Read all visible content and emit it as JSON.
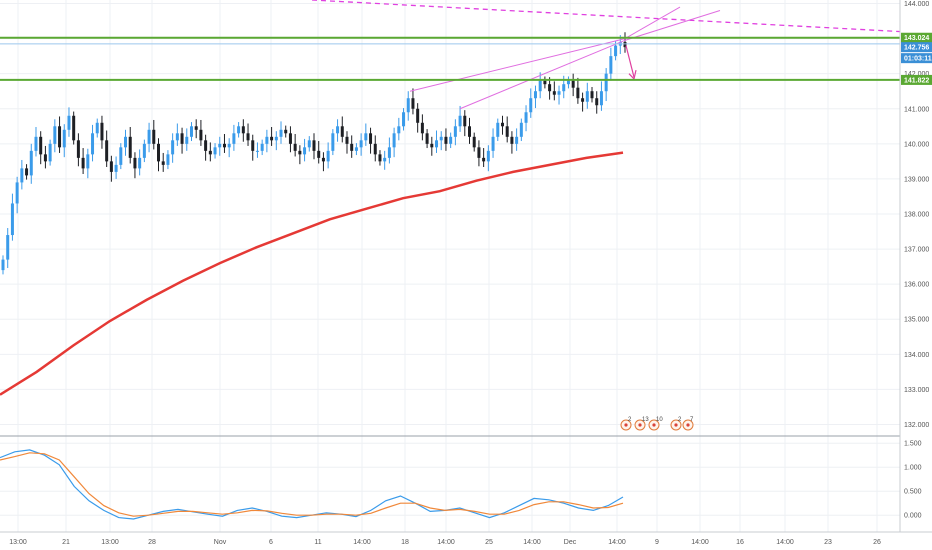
{
  "chart_data": {
    "type": "candlestick",
    "main": {
      "ylim": [
        131.7,
        144.1
      ],
      "y_ticks": [
        132.0,
        133.0,
        134.0,
        135.0,
        136.0,
        137.0,
        138.0,
        139.0,
        140.0,
        141.0,
        142.0,
        143.0,
        144.0
      ],
      "y_tick_labels": [
        "132.000",
        "133.000",
        "134.000",
        "135.000",
        "136.000",
        "137.000",
        "138.000",
        "139.000",
        "140.000",
        "141.000",
        "142.000",
        "143.000",
        "144.000"
      ],
      "levels": [
        {
          "value": 143.024,
          "label": "143.024",
          "color": "#5aa832"
        },
        {
          "value": 141.822,
          "label": "141.822",
          "color": "#5aa832"
        }
      ],
      "price_label": {
        "value": 142.756,
        "label": "142.756",
        "color": "#3a8fd6"
      },
      "countdown_label": "01:03:11",
      "price_line": {
        "value": 142.85,
        "color": "#9cc8ee"
      },
      "closes": [
        136.7,
        137.4,
        138.3,
        138.9,
        139.3,
        139.1,
        139.8,
        140.2,
        139.7,
        139.5,
        140.0,
        140.5,
        139.9,
        140.4,
        140.8,
        140.1,
        139.6,
        139.3,
        139.7,
        140.3,
        140.6,
        140.1,
        139.5,
        139.2,
        139.4,
        139.9,
        140.2,
        139.6,
        139.3,
        139.6,
        140.0,
        140.4,
        140.0,
        139.5,
        139.4,
        139.7,
        140.1,
        140.3,
        140.0,
        140.2,
        140.5,
        140.4,
        140.1,
        139.8,
        139.7,
        139.9,
        140.0,
        139.9,
        140.0,
        140.3,
        140.5,
        140.3,
        140.1,
        139.8,
        139.8,
        140.0,
        140.2,
        140.1,
        140.2,
        140.4,
        140.3,
        140.0,
        139.8,
        139.7,
        139.9,
        140.1,
        139.8,
        139.6,
        139.5,
        139.8,
        140.3,
        140.5,
        140.2,
        140.0,
        139.8,
        139.9,
        140.1,
        140.3,
        140.0,
        139.7,
        139.5,
        139.6,
        139.9,
        140.3,
        140.5,
        140.9,
        141.3,
        141.0,
        140.6,
        140.3,
        140.0,
        139.9,
        140.1,
        140.2,
        140.0,
        140.2,
        140.5,
        140.8,
        140.5,
        140.2,
        139.9,
        139.6,
        139.5,
        139.8,
        140.2,
        140.6,
        140.5,
        140.2,
        140.0,
        140.2,
        140.6,
        140.9,
        141.3,
        141.5,
        141.8,
        141.7,
        141.5,
        141.4,
        141.5,
        141.7,
        141.8,
        141.6,
        141.3,
        141.2,
        141.5,
        141.3,
        141.1,
        141.5,
        142.0,
        142.5,
        142.8,
        142.9,
        142.756
      ],
      "moving_average": {
        "color": "#e53935",
        "values": [
          132.85,
          133.5,
          134.25,
          134.95,
          135.55,
          136.1,
          136.6,
          137.05,
          137.45,
          137.85,
          138.15,
          138.45,
          138.65,
          138.95,
          139.2,
          139.4,
          139.6,
          139.75
        ]
      },
      "annotations": {
        "trendline_color": "#e06ee0",
        "dashed_line_color": "#e040e0",
        "arrow_color": "#e040a0"
      }
    },
    "oscillator": {
      "ylim": [
        -0.35,
        1.65
      ],
      "y_ticks": [
        0.0,
        0.5,
        1.0,
        1.5
      ],
      "y_tick_labels": [
        "0.000",
        "0.500",
        "1.000",
        "1.500"
      ],
      "series": [
        {
          "color": "#3a9bea",
          "values": [
            1.2,
            1.32,
            1.36,
            1.25,
            1.05,
            0.6,
            0.3,
            0.1,
            -0.05,
            -0.08,
            0.0,
            0.08,
            0.12,
            0.07,
            0.02,
            -0.02,
            0.1,
            0.15,
            0.08,
            -0.02,
            -0.05,
            0.0,
            0.05,
            0.02,
            -0.03,
            0.1,
            0.3,
            0.4,
            0.25,
            0.08,
            0.1,
            0.15,
            0.05,
            -0.05,
            0.05,
            0.2,
            0.35,
            0.32,
            0.25,
            0.15,
            0.1,
            0.2,
            0.38
          ]
        },
        {
          "color": "#f0883a",
          "values": [
            1.15,
            1.22,
            1.3,
            1.28,
            1.15,
            0.8,
            0.45,
            0.2,
            0.05,
            -0.02,
            0.0,
            0.04,
            0.08,
            0.08,
            0.05,
            0.02,
            0.05,
            0.1,
            0.09,
            0.04,
            0.0,
            0.0,
            0.02,
            0.02,
            0.0,
            0.04,
            0.15,
            0.25,
            0.25,
            0.15,
            0.1,
            0.12,
            0.08,
            0.02,
            0.02,
            0.1,
            0.22,
            0.28,
            0.28,
            0.22,
            0.15,
            0.16,
            0.25
          ]
        }
      ]
    },
    "x_tick_labels": [
      "13:00",
      "21",
      "13:00",
      "28",
      "Nov",
      "6",
      "11",
      "14:00",
      "18",
      "14:00",
      "25",
      "14:00",
      "Dec",
      "14:00",
      "9",
      "14:00",
      "16",
      "14:00",
      "23",
      "26"
    ],
    "event_markers": [
      "2",
      "13",
      "10",
      "2",
      "7"
    ]
  }
}
